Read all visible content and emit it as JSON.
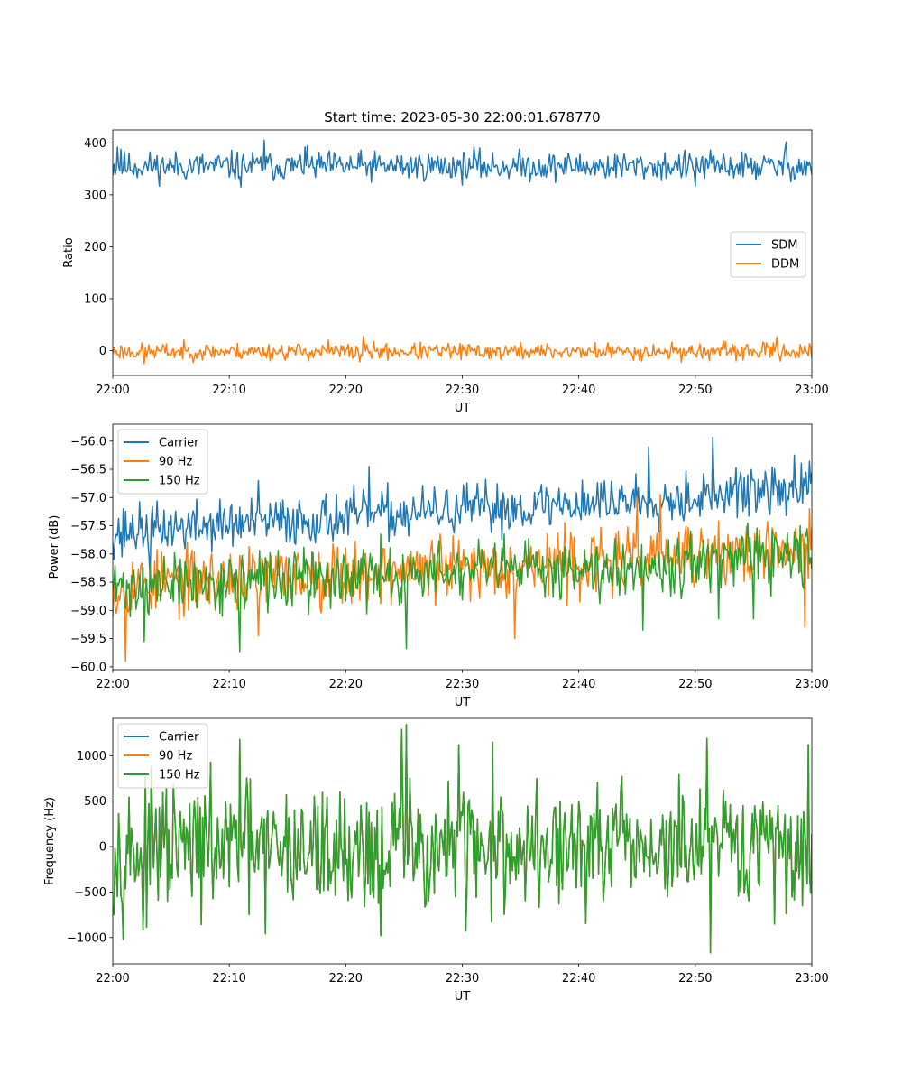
{
  "colors": {
    "blue": "#1f77b4",
    "orange": "#ff7f0e",
    "green": "#2ca02c"
  },
  "chart_data": [
    {
      "type": "line",
      "title": "Start time: 2023-05-30 22:00:01.678770",
      "xlabel": "UT",
      "ylabel": "Ratio",
      "xlim": [
        0,
        60
      ],
      "ylim": [
        -48,
        425
      ],
      "xticks": [
        0,
        10,
        20,
        30,
        40,
        50,
        60
      ],
      "xtick_labels": [
        "22:00",
        "22:10",
        "22:20",
        "22:30",
        "22:40",
        "22:50",
        "23:00"
      ],
      "yticks": [
        0,
        100,
        200,
        300,
        400
      ],
      "ytick_labels": [
        "0",
        "100",
        "200",
        "300",
        "400"
      ],
      "legend_position": "center-right",
      "series": [
        {
          "name": "SDM",
          "color": "#1f77b4",
          "generator": {
            "base": 355,
            "amp": 14,
            "seed": 11,
            "spikes": [
              [
                0.4,
                392
              ],
              [
                0.7,
                388
              ],
              [
                11.0,
                315
              ],
              [
                13.0,
                405
              ],
              [
                16.5,
                392
              ],
              [
                31.0,
                392
              ],
              [
                50.0,
                317
              ],
              [
                57.8,
                402
              ],
              [
                59.5,
                338
              ]
            ]
          }
        },
        {
          "name": "DDM",
          "color": "#ff7f0e",
          "generator": {
            "base": -2,
            "amp": 8,
            "seed": 23,
            "spikes": [
              [
                2.7,
                -25
              ],
              [
                18.5,
                20
              ],
              [
                21.5,
                27
              ],
              [
                21.2,
                -22
              ],
              [
                57.0,
                26
              ],
              [
                60.0,
                -16
              ]
            ]
          }
        }
      ]
    },
    {
      "type": "line",
      "xlabel": "UT",
      "ylabel": "Power (dB)",
      "xlim": [
        0,
        60
      ],
      "ylim": [
        -60.05,
        -55.7
      ],
      "xticks": [
        0,
        10,
        20,
        30,
        40,
        50,
        60
      ],
      "xtick_labels": [
        "22:00",
        "22:10",
        "22:20",
        "22:30",
        "22:40",
        "22:50",
        "23:00"
      ],
      "yticks": [
        -60.0,
        -59.5,
        -59.0,
        -58.5,
        -58.0,
        -57.5,
        -57.0,
        -56.5,
        -56.0
      ],
      "ytick_labels": [
        "−60.0",
        "−59.5",
        "−59.0",
        "−58.5",
        "−58.0",
        "−57.5",
        "−57.0",
        "−56.5",
        "−56.0"
      ],
      "legend_position": "upper-left",
      "series": [
        {
          "name": "Carrier",
          "color": "#1f77b4",
          "generator": {
            "start": -57.6,
            "end": -56.85,
            "amp": 0.22,
            "seed": 37,
            "spikes": [
              [
                0.8,
                -58.05
              ],
              [
                3.2,
                -58.4
              ],
              [
                12.5,
                -56.7
              ],
              [
                22.0,
                -56.45
              ],
              [
                46.0,
                -56.1
              ],
              [
                51.5,
                -55.93
              ],
              [
                54.5,
                -56.6
              ],
              [
                58.5,
                -56.25
              ],
              [
                60.0,
                -56.55
              ]
            ]
          }
        },
        {
          "name": "90 Hz",
          "color": "#ff7f0e",
          "generator": {
            "start": -58.55,
            "end": -57.95,
            "amp": 0.28,
            "seed": 53,
            "spikes": [
              [
                1.1,
                -59.9
              ],
              [
                0.3,
                -59.05
              ],
              [
                12.5,
                -59.45
              ],
              [
                34.5,
                -59.5
              ],
              [
                45.0,
                -57.0
              ],
              [
                47.0,
                -56.95
              ],
              [
                59.4,
                -59.3
              ],
              [
                59.8,
                -57.2
              ]
            ]
          }
        },
        {
          "name": "150 Hz",
          "color": "#2ca02c",
          "generator": {
            "start": -58.6,
            "end": -58.05,
            "amp": 0.26,
            "seed": 71,
            "spikes": [
              [
                2.7,
                -59.55
              ],
              [
                10.9,
                -59.73
              ],
              [
                25.2,
                -59.68
              ],
              [
                45.5,
                -59.35
              ],
              [
                52.0,
                -59.15
              ],
              [
                55.0,
                -59.15
              ],
              [
                59.0,
                -57.5
              ]
            ]
          }
        }
      ]
    },
    {
      "type": "line",
      "xlabel": "UT",
      "ylabel": "Frequency (Hz)",
      "xlim": [
        0,
        60
      ],
      "ylim": [
        -1290,
        1410
      ],
      "xticks": [
        0,
        10,
        20,
        30,
        40,
        50,
        60
      ],
      "xtick_labels": [
        "22:00",
        "22:10",
        "22:20",
        "22:30",
        "22:40",
        "22:50",
        "23:00"
      ],
      "yticks": [
        -1000,
        -500,
        0,
        500,
        1000
      ],
      "ytick_labels": [
        "−1000",
        "−500",
        "0",
        "500",
        "1000"
      ],
      "legend_position": "upper-left",
      "series": [
        {
          "name": "Carrier",
          "color": "#1f77b4",
          "generator": {
            "base": -30,
            "amp": 340,
            "seed": 97,
            "spikes": [
              [
                2.6,
                -920
              ],
              [
                10.9,
                1180
              ],
              [
                13.1,
                -960
              ],
              [
                23.0,
                -980
              ],
              [
                24.8,
                1290
              ],
              [
                25.2,
                1340
              ],
              [
                29.7,
                1120
              ],
              [
                30.3,
                -930
              ],
              [
                32.6,
                1150
              ],
              [
                51.3,
                -1170
              ],
              [
                51.0,
                1190
              ],
              [
                59.7,
                1120
              ]
            ]
          }
        },
        {
          "name": "90 Hz",
          "color": "#ff7f0e",
          "generator": {
            "base": -30,
            "amp": 340,
            "seed": 97,
            "spikes": [
              [
                2.6,
                -920
              ],
              [
                10.9,
                1180
              ],
              [
                13.1,
                -960
              ],
              [
                23.0,
                -980
              ],
              [
                24.8,
                1290
              ],
              [
                25.2,
                1340
              ],
              [
                29.7,
                1120
              ],
              [
                30.3,
                -930
              ],
              [
                32.6,
                1150
              ],
              [
                51.3,
                -1170
              ],
              [
                51.0,
                1190
              ],
              [
                59.7,
                1120
              ]
            ]
          }
        },
        {
          "name": "150 Hz",
          "color": "#2ca02c",
          "generator": {
            "base": -30,
            "amp": 340,
            "seed": 97,
            "spikes": [
              [
                2.6,
                -920
              ],
              [
                10.9,
                1180
              ],
              [
                13.1,
                -960
              ],
              [
                23.0,
                -980
              ],
              [
                24.8,
                1290
              ],
              [
                25.2,
                1340
              ],
              [
                29.7,
                1120
              ],
              [
                30.3,
                -930
              ],
              [
                32.6,
                1150
              ],
              [
                51.3,
                -1170
              ],
              [
                51.0,
                1190
              ],
              [
                59.7,
                1120
              ]
            ]
          }
        }
      ]
    }
  ]
}
